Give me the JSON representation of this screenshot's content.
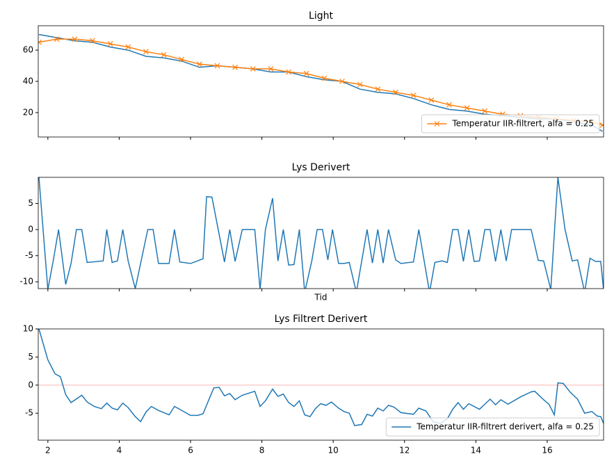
{
  "chart_data": [
    {
      "type": "line",
      "title": "Light",
      "x": [
        1.75,
        2.25,
        2.75,
        3.25,
        3.75,
        4.25,
        4.75,
        5.25,
        5.75,
        6.25,
        6.75,
        7.25,
        7.75,
        8.25,
        8.75,
        9.25,
        9.75,
        10.25,
        10.75,
        11.25,
        11.75,
        12.25,
        12.75,
        13.25,
        13.75,
        14.25,
        14.75,
        15.25,
        15.75,
        16.25,
        16.75,
        17.25,
        17.55
      ],
      "series": [
        {
          "color": "#1f77b4",
          "values": [
            70,
            68,
            66,
            65,
            62,
            60,
            56,
            55,
            53,
            49,
            50,
            49,
            48,
            46,
            46,
            43,
            41,
            40,
            35,
            33,
            32,
            29,
            25,
            22,
            21,
            19,
            18,
            17,
            16,
            16,
            14,
            12,
            8
          ]
        },
        {
          "name": "Temperatur IIR-filtrert, alfa = 0.25",
          "color": "#ff7f0e",
          "marker": "x",
          "values": [
            65,
            67,
            67,
            66,
            64,
            62,
            59,
            57,
            54,
            51,
            50,
            49,
            48,
            48,
            46,
            45,
            42,
            40,
            38,
            35,
            33,
            31,
            28,
            25,
            23,
            21,
            19,
            18,
            17,
            16,
            15,
            14,
            12
          ]
        }
      ],
      "xlim": [
        1.73,
        17.58
      ],
      "xticks": [
        2,
        4,
        6,
        8,
        10,
        12,
        14,
        16
      ],
      "xtick_labels": false,
      "ylim": [
        4.4,
        75.6
      ],
      "yticks": [
        20,
        40,
        60
      ],
      "legend": "lower right"
    },
    {
      "type": "line",
      "title": "Lys Derivert",
      "x_label": "Tid",
      "x": [
        1.75,
        2.0,
        2.15,
        2.3,
        2.5,
        2.65,
        2.8,
        2.95,
        3.1,
        3.55,
        3.65,
        3.8,
        3.95,
        4.1,
        4.25,
        4.45,
        4.6,
        4.8,
        4.95,
        5.1,
        5.4,
        5.55,
        5.7,
        6.0,
        6.35,
        6.45,
        6.6,
        6.95,
        7.1,
        7.25,
        7.45,
        7.8,
        7.95,
        8.1,
        8.3,
        8.45,
        8.6,
        8.75,
        8.9,
        9.05,
        9.2,
        9.4,
        9.55,
        9.7,
        9.85,
        9.98,
        10.15,
        10.3,
        10.45,
        10.65,
        10.8,
        10.95,
        11.1,
        11.25,
        11.4,
        11.55,
        11.75,
        11.9,
        12.25,
        12.4,
        12.7,
        12.85,
        13.05,
        13.2,
        13.35,
        13.5,
        13.65,
        13.8,
        13.95,
        14.1,
        14.25,
        14.4,
        14.55,
        14.7,
        14.85,
        15.0,
        15.55,
        15.75,
        15.9,
        16.1,
        16.3,
        16.5,
        16.7,
        16.85,
        17.05,
        17.2,
        17.35,
        17.5,
        17.58
      ],
      "series": [
        {
          "color": "#1f77b4",
          "values": [
            10,
            -11.5,
            -6,
            0,
            -10.5,
            -6.5,
            0,
            0,
            -6.3,
            -6,
            0,
            -6.3,
            -6,
            0,
            -6,
            -11.3,
            -6.5,
            0,
            0,
            -6.5,
            -6.5,
            0,
            -6.2,
            -6.5,
            -5.6,
            6.3,
            6.2,
            -6.2,
            0,
            -6.1,
            0,
            0,
            -11.5,
            0,
            6,
            -6,
            0,
            -6.8,
            -6.7,
            0,
            -12,
            -6,
            0,
            0,
            -5.8,
            0,
            -6.5,
            -6.5,
            -6.3,
            -12,
            -6,
            0,
            -6.4,
            0,
            -6.4,
            0,
            -5.8,
            -6.5,
            -6.2,
            0,
            -12,
            -6.3,
            -6,
            -6.3,
            0,
            0,
            -6.1,
            0,
            -6.1,
            -6,
            0,
            0,
            -6.1,
            0,
            -6,
            0,
            0,
            -5.9,
            -6,
            -11.5,
            10,
            0,
            -6,
            -5.8,
            -12,
            -5.5,
            -6.1,
            -6.1,
            -11.5
          ]
        }
      ],
      "xlim": [
        1.73,
        17.58
      ],
      "xticks": [
        2,
        4,
        6,
        8,
        10,
        12,
        14,
        16
      ],
      "xtick_labels": false,
      "ylim": [
        -11.3,
        10
      ],
      "yticks": [
        -10,
        -5,
        0,
        5
      ]
    },
    {
      "type": "line",
      "title": "Lys Filtrert Derivert",
      "x": [
        1.75,
        2.0,
        2.2,
        2.35,
        2.5,
        2.65,
        2.95,
        3.1,
        3.3,
        3.5,
        3.65,
        3.8,
        3.95,
        4.1,
        4.25,
        4.45,
        4.6,
        4.75,
        4.9,
        5.1,
        5.4,
        5.55,
        5.7,
        6.0,
        6.2,
        6.35,
        6.65,
        6.8,
        6.95,
        7.1,
        7.25,
        7.45,
        7.8,
        7.95,
        8.1,
        8.3,
        8.45,
        8.6,
        8.75,
        8.9,
        9.05,
        9.2,
        9.35,
        9.5,
        9.65,
        9.8,
        9.95,
        10.15,
        10.3,
        10.45,
        10.6,
        10.8,
        10.95,
        11.1,
        11.25,
        11.4,
        11.55,
        11.7,
        11.9,
        12.25,
        12.4,
        12.6,
        12.8,
        13.0,
        13.2,
        13.35,
        13.5,
        13.65,
        13.8,
        14.1,
        14.4,
        14.55,
        14.7,
        14.9,
        15.25,
        15.55,
        15.65,
        15.9,
        16.05,
        16.2,
        16.3,
        16.45,
        16.65,
        16.85,
        17.05,
        17.25,
        17.4,
        17.5,
        17.58
      ],
      "series": [
        {
          "name": "Temperatur IIR-filtrert derivert, alfa = 0.25",
          "color": "#1f77b4",
          "values": [
            10,
            4.5,
            2,
            1.5,
            -1.7,
            -3.1,
            -1.8,
            -3,
            -3.8,
            -4.2,
            -3.2,
            -4.1,
            -4.4,
            -3.2,
            -4,
            -5.6,
            -6.5,
            -4.8,
            -3.8,
            -4.5,
            -5.3,
            -3.8,
            -4.3,
            -5.4,
            -5.4,
            -5.1,
            -0.5,
            -0.4,
            -1.9,
            -1.5,
            -2.6,
            -1.8,
            -1.1,
            -3.8,
            -2.8,
            -0.7,
            -2,
            -1.6,
            -3.1,
            -3.8,
            -2.8,
            -5.3,
            -5.6,
            -4.2,
            -3.3,
            -3.6,
            -3,
            -4.1,
            -4.7,
            -5,
            -7.2,
            -7,
            -5.2,
            -5.5,
            -4.1,
            -4.6,
            -3.6,
            -3.9,
            -4.9,
            -5.2,
            -4.1,
            -4.6,
            -6.5,
            -6.8,
            -6,
            -4.3,
            -3.1,
            -4.3,
            -3.3,
            -4.3,
            -2.5,
            -3.5,
            -2.6,
            -3.4,
            -2.1,
            -1.2,
            -1.1,
            -2.6,
            -3.4,
            -5.3,
            0.4,
            0.3,
            -1.3,
            -2.5,
            -5,
            -4.7,
            -5.5,
            -5.6,
            -6.8
          ]
        }
      ],
      "hline": {
        "value": 0,
        "color": "#ffcccc"
      },
      "xlim": [
        1.73,
        17.58
      ],
      "xticks": [
        2,
        4,
        6,
        8,
        10,
        12,
        14,
        16
      ],
      "ylim": [
        -9.8,
        10
      ],
      "yticks": [
        -5,
        0,
        5,
        10
      ],
      "legend": "lower right"
    }
  ]
}
